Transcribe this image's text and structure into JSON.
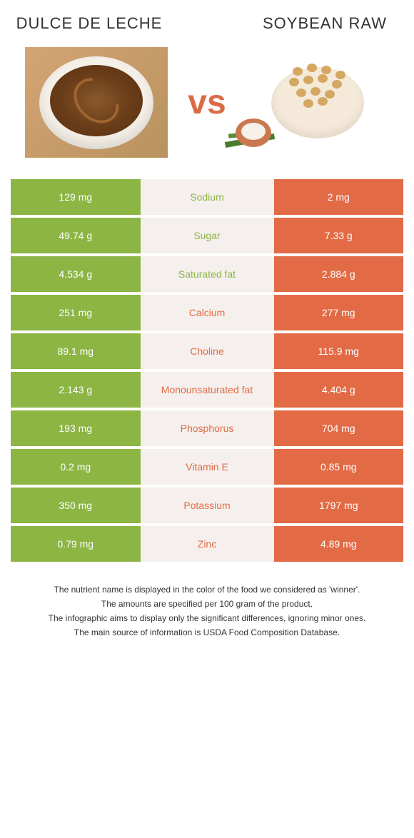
{
  "colors": {
    "green": "#8cb544",
    "orange": "#e26b46",
    "mid_bg": "#f5f0ed"
  },
  "header": {
    "left_title": "Dulce de leche",
    "vs": "vs",
    "right_title": "Soybean raw"
  },
  "rows": [
    {
      "left": "129 mg",
      "label": "Sodium",
      "right": "2 mg",
      "winner": "green"
    },
    {
      "left": "49.74 g",
      "label": "Sugar",
      "right": "7.33 g",
      "winner": "green"
    },
    {
      "left": "4.534 g",
      "label": "Saturated fat",
      "right": "2.884 g",
      "winner": "green"
    },
    {
      "left": "251 mg",
      "label": "Calcium",
      "right": "277 mg",
      "winner": "orange"
    },
    {
      "left": "89.1 mg",
      "label": "Choline",
      "right": "115.9 mg",
      "winner": "orange"
    },
    {
      "left": "2.143 g",
      "label": "Monounsaturated fat",
      "right": "4.404 g",
      "winner": "orange"
    },
    {
      "left": "193 mg",
      "label": "Phosphorus",
      "right": "704 mg",
      "winner": "orange"
    },
    {
      "left": "0.2 mg",
      "label": "Vitamin E",
      "right": "0.85 mg",
      "winner": "orange"
    },
    {
      "left": "350 mg",
      "label": "Potassium",
      "right": "1797 mg",
      "winner": "orange"
    },
    {
      "left": "0.79 mg",
      "label": "Zinc",
      "right": "4.89 mg",
      "winner": "orange"
    }
  ],
  "footnotes": [
    "The nutrient name is displayed in the color of the food we considered as 'winner'.",
    "The amounts are specified per 100 gram of the product.",
    "The infographic aims to display only the significant differences, ignoring minor ones.",
    "The main source of information is USDA Food Composition Database."
  ]
}
